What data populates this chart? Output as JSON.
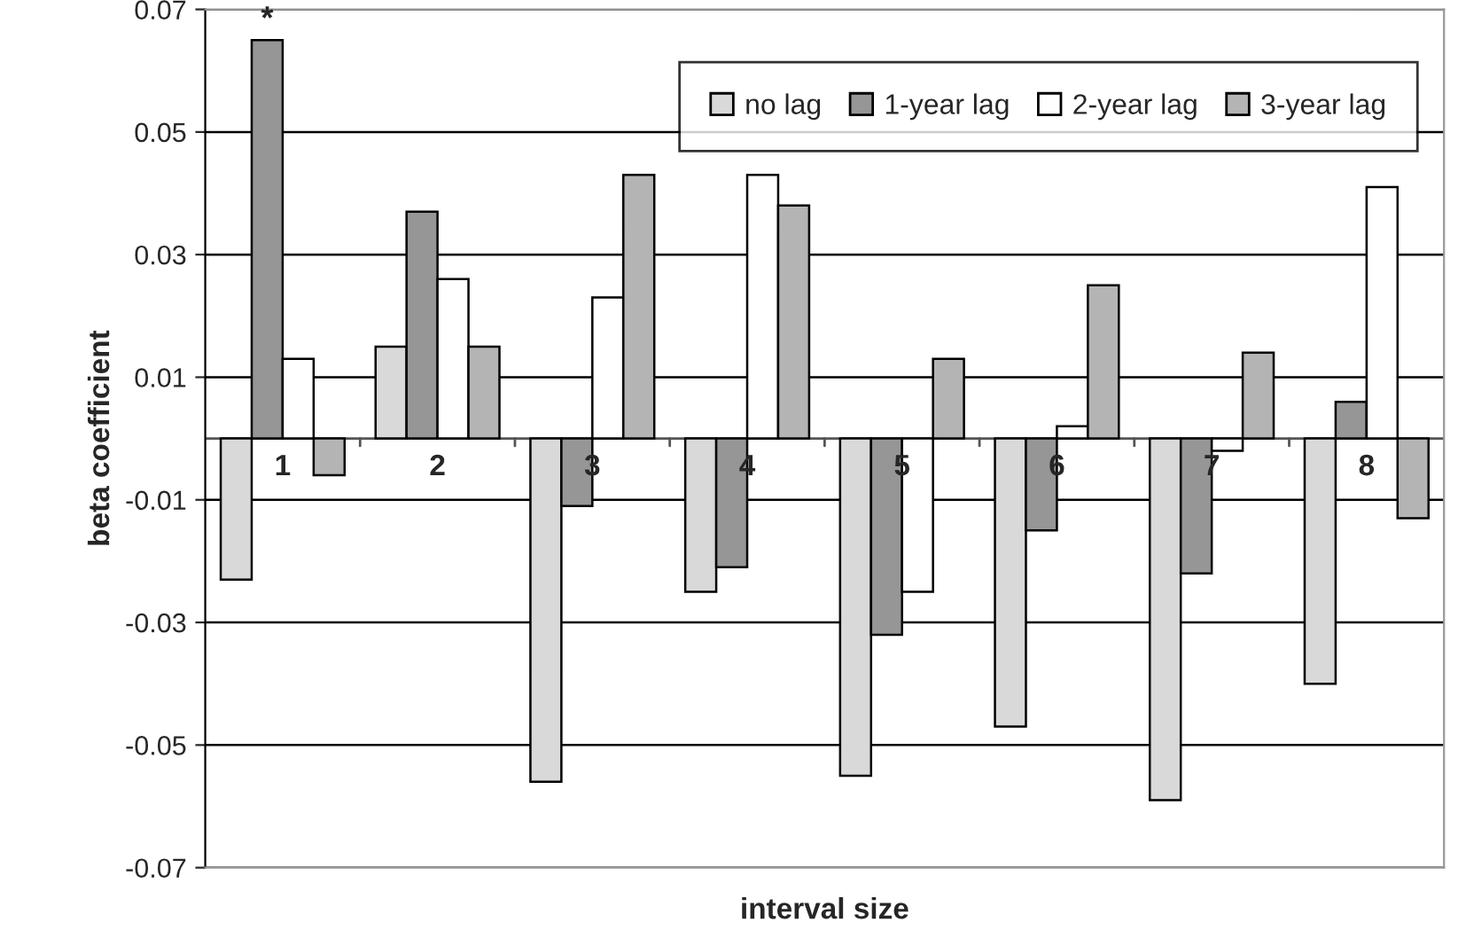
{
  "chart_data": {
    "type": "bar",
    "xlabel": "interval size",
    "ylabel": "beta coefficient",
    "categories": [
      "1",
      "2",
      "3",
      "4",
      "5",
      "6",
      "7",
      "8"
    ],
    "series": [
      {
        "name": "no lag",
        "color": "#d9d9d9",
        "values": [
          -0.023,
          0.015,
          -0.056,
          -0.025,
          -0.055,
          -0.047,
          -0.059,
          -0.04
        ]
      },
      {
        "name": "1-year lag",
        "color": "#969696",
        "values": [
          0.065,
          0.037,
          -0.011,
          -0.021,
          -0.032,
          -0.015,
          -0.022,
          0.006
        ]
      },
      {
        "name": "2-year lag",
        "color": "#ffffff",
        "values": [
          0.013,
          0.026,
          0.023,
          0.043,
          -0.025,
          0.002,
          -0.002,
          0.041
        ]
      },
      {
        "name": "3-year lag",
        "color": "#b4b4b4",
        "values": [
          -0.006,
          0.015,
          0.043,
          0.038,
          0.013,
          0.025,
          0.014,
          -0.013
        ]
      }
    ],
    "ylim": [
      -0.07,
      0.07
    ],
    "yticks": [
      -0.07,
      -0.05,
      -0.03,
      -0.01,
      0.01,
      0.03,
      0.05,
      0.07
    ],
    "grid": "y",
    "legend": "top right",
    "annotations": [
      {
        "text": "*",
        "x": "1",
        "y": 0.065
      }
    ]
  }
}
